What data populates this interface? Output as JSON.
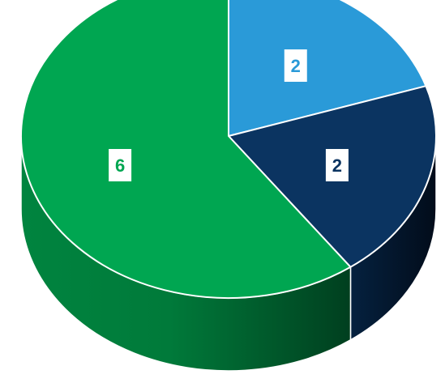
{
  "chart_data": {
    "type": "pie",
    "style": "3d",
    "categories": [
      "",
      "",
      ""
    ],
    "values": [
      2,
      2,
      6
    ],
    "data_labels": [
      "2",
      "2",
      "6"
    ],
    "colors": [
      "#2a9ad8",
      "#0b3461",
      "#00a651"
    ],
    "label_colors": [
      "#2a9ad8",
      "#0b3461",
      "#00a651"
    ],
    "title": "",
    "legend": "none"
  }
}
